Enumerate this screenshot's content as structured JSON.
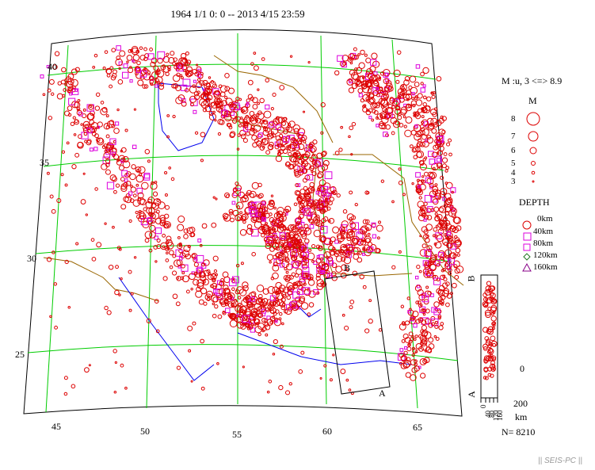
{
  "title": "1964 1/1 0: 0 -- 2013 4/15 23:59",
  "map": {
    "lat_labels": [
      "40",
      "35",
      "30",
      "25"
    ],
    "lon_labels": [
      "45",
      "50",
      "55",
      "60",
      "65"
    ],
    "section_labels": {
      "start": "A",
      "end": "B"
    }
  },
  "magnitude_legend": {
    "header": "M :u, 3 <=> 8.9",
    "title": "M",
    "levels": [
      "8",
      "7",
      "6",
      "5",
      "4",
      "3"
    ]
  },
  "depth_legend": {
    "title": "DEPTH",
    "items": [
      {
        "label": "0km",
        "symbol": "circle",
        "color": "#dd0000"
      },
      {
        "label": "40km",
        "symbol": "square",
        "color": "#dd00dd"
      },
      {
        "label": "80km",
        "symbol": "square",
        "color": "#dd00dd"
      },
      {
        "label": "120km",
        "symbol": "diamond",
        "color": "#227722"
      },
      {
        "label": "160km",
        "symbol": "triangle",
        "color": "#880088"
      }
    ]
  },
  "cross_section": {
    "axis_top": "B",
    "axis_bottom": "A",
    "depth_top": "0",
    "depth_bottom": "200",
    "unit": "km",
    "ticks": [
      "0",
      "40",
      "80",
      "120",
      "160"
    ]
  },
  "count": "N= 8210",
  "footer": "|| SEIS-PC ||",
  "colors": {
    "grid": "#00cc00",
    "border": "#996600",
    "river": "#0000ee",
    "quake": "#dd0000",
    "quake_mid": "#dd00dd"
  }
}
